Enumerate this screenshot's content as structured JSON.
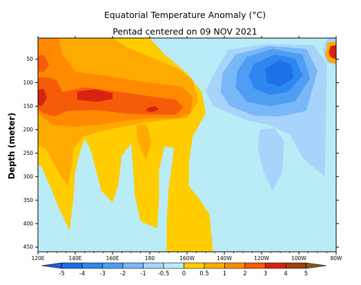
{
  "chart_data": {
    "type": "heatmap",
    "title": "Equatorial Temperature Anomaly (°C)",
    "subtitle": "Pentad centered on 09 NOV 2021",
    "xlabel": "",
    "ylabel": "Depth (meter)",
    "x_tick_labels": [
      "120E",
      "140E",
      "160E",
      "180",
      "160W",
      "140W",
      "120W",
      "100W",
      "80W"
    ],
    "x_tick_lon_east": [
      120,
      140,
      160,
      180,
      200,
      220,
      240,
      260,
      280
    ],
    "xlim_lon_east": [
      120,
      280
    ],
    "y_ticks": [
      50,
      100,
      150,
      200,
      250,
      300,
      350,
      400,
      450
    ],
    "ylim": [
      5,
      460
    ],
    "y_inverted": true,
    "colorbar": {
      "tick_labels": [
        "-5",
        "-4",
        "-3",
        "-2",
        "-1",
        "-0.5",
        "0",
        "0.5",
        "1",
        "2",
        "3",
        "4",
        "5"
      ],
      "bins": [
        {
          "lo": -99,
          "hi": -5,
          "color": "#1a5ed8"
        },
        {
          "lo": -5,
          "hi": -4,
          "color": "#1e70e6"
        },
        {
          "lo": -4,
          "hi": -3,
          "color": "#2e86f0"
        },
        {
          "lo": -3,
          "hi": -2,
          "color": "#509ef4"
        },
        {
          "lo": -2,
          "hi": -1,
          "color": "#78b7f8"
        },
        {
          "lo": -1,
          "hi": -0.5,
          "color": "#a8d4fb"
        },
        {
          "lo": -0.5,
          "hi": 0,
          "color": "#b9ecf6"
        },
        {
          "lo": 0,
          "hi": 0.5,
          "color": "#ffcd00"
        },
        {
          "lo": 0.5,
          "hi": 1,
          "color": "#ffaa00"
        },
        {
          "lo": 1,
          "hi": 2,
          "color": "#ff8a00"
        },
        {
          "lo": 2,
          "hi": 3,
          "color": "#f65b0a"
        },
        {
          "lo": 3,
          "hi": 4,
          "color": "#d8230e"
        },
        {
          "lo": 4,
          "hi": 5,
          "color": "#99400e"
        },
        {
          "lo": 5,
          "hi": 99,
          "color": "#7e5a1a"
        }
      ]
    },
    "regions": [
      {
        "level": -0.5,
        "pts": [
          [
            205,
            5
          ],
          [
            280,
            5
          ],
          [
            280,
            460
          ],
          [
            205,
            460
          ]
        ]
      },
      {
        "level": -1,
        "pts": [
          [
            222,
            30
          ],
          [
            242,
            18
          ],
          [
            268,
            20
          ],
          [
            275,
            60
          ],
          [
            274,
            300
          ],
          [
            262,
            260
          ],
          [
            255,
            210
          ],
          [
            244,
            190
          ],
          [
            232,
            180
          ],
          [
            214,
            150
          ],
          [
            210,
            118
          ],
          [
            214,
            85
          ]
        ]
      },
      {
        "level": -1,
        "pts": [
          [
            239,
            200
          ],
          [
            247,
            196
          ],
          [
            252,
            225
          ],
          [
            251,
            290
          ],
          [
            246,
            330
          ],
          [
            241,
            290
          ],
          [
            238,
            240
          ]
        ]
      },
      {
        "level": -2,
        "pts": [
          [
            226,
            40
          ],
          [
            244,
            22
          ],
          [
            264,
            28
          ],
          [
            270,
            75
          ],
          [
            264,
            160
          ],
          [
            250,
            172
          ],
          [
            236,
            170
          ],
          [
            223,
            150
          ],
          [
            218,
            120
          ],
          [
            219,
            80
          ]
        ]
      },
      {
        "level": -3,
        "pts": [
          [
            232,
            45
          ],
          [
            246,
            28
          ],
          [
            262,
            40
          ],
          [
            266,
            90
          ],
          [
            258,
            140
          ],
          [
            244,
            150
          ],
          [
            232,
            140
          ],
          [
            226,
            110
          ],
          [
            227,
            75
          ]
        ]
      },
      {
        "level": -4,
        "pts": [
          [
            236,
            60
          ],
          [
            247,
            40
          ],
          [
            258,
            48
          ],
          [
            262,
            85
          ],
          [
            254,
            120
          ],
          [
            244,
            126
          ],
          [
            236,
            112
          ],
          [
            233,
            85
          ]
        ]
      },
      {
        "level": -5,
        "pts": [
          [
            242,
            70
          ],
          [
            250,
            52
          ],
          [
            256,
            62
          ],
          [
            257,
            90
          ],
          [
            250,
            108
          ],
          [
            243,
            100
          ]
        ]
      },
      {
        "level": 0.25,
        "pts": [
          [
            120,
            5
          ],
          [
            180,
            5
          ],
          [
            188,
            40
          ],
          [
            200,
            80
          ],
          [
            208,
            120
          ],
          [
            210,
            165
          ],
          [
            203,
            215
          ],
          [
            201,
            270
          ],
          [
            201,
            320
          ],
          [
            207,
            350
          ],
          [
            212,
            380
          ],
          [
            213,
            420
          ],
          [
            214,
            460
          ],
          [
            189,
            460
          ],
          [
            189,
            400
          ],
          [
            190,
            330
          ],
          [
            192,
            270
          ],
          [
            193,
            240
          ],
          [
            188,
            235
          ],
          [
            185,
            285
          ],
          [
            185,
            345
          ],
          [
            184,
            410
          ],
          [
            175,
            395
          ],
          [
            172,
            340
          ],
          [
            170,
            230
          ],
          [
            165,
            255
          ],
          [
            163,
            320
          ],
          [
            160,
            355
          ],
          [
            154,
            330
          ],
          [
            150,
            270
          ],
          [
            148,
            240
          ],
          [
            145,
            220
          ],
          [
            142,
            255
          ],
          [
            140,
            290
          ],
          [
            139,
            345
          ],
          [
            137,
            415
          ],
          [
            131,
            365
          ],
          [
            127,
            325
          ],
          [
            122,
            280
          ],
          [
            120,
            275
          ]
        ]
      },
      {
        "level": 0.75,
        "pts": [
          [
            120,
            5
          ],
          [
            160,
            5
          ],
          [
            168,
            25
          ],
          [
            182,
            48
          ],
          [
            195,
            70
          ],
          [
            203,
            95
          ],
          [
            206,
            140
          ],
          [
            200,
            175
          ],
          [
            188,
            180
          ],
          [
            176,
            186
          ],
          [
            164,
            195
          ],
          [
            152,
            205
          ],
          [
            144,
            215
          ],
          [
            139,
            240
          ],
          [
            138,
            280
          ],
          [
            136,
            320
          ],
          [
            131,
            290
          ],
          [
            127,
            260
          ],
          [
            124,
            240
          ],
          [
            121,
            235
          ],
          [
            120,
            230
          ]
        ]
      },
      {
        "level": 0.75,
        "pts": [
          [
            173,
            190
          ],
          [
            178,
            188
          ],
          [
            181,
            225
          ],
          [
            178,
            265
          ],
          [
            175,
            240
          ],
          [
            173,
            215
          ]
        ]
      },
      {
        "level": 1.5,
        "pts": [
          [
            120,
            5
          ],
          [
            131,
            5
          ],
          [
            133,
            38
          ],
          [
            140,
            76
          ],
          [
            157,
            86
          ],
          [
            176,
            98
          ],
          [
            197,
            108
          ],
          [
            203,
            130
          ],
          [
            202,
            165
          ],
          [
            195,
            175
          ],
          [
            182,
            176
          ],
          [
            168,
            180
          ],
          [
            152,
            190
          ],
          [
            139,
            194
          ],
          [
            128,
            190
          ],
          [
            122,
            172
          ],
          [
            120,
            165
          ]
        ]
      },
      {
        "level": 2.5,
        "pts": [
          [
            120,
            90
          ],
          [
            125,
            88
          ],
          [
            130,
            95
          ],
          [
            133,
            120
          ],
          [
            145,
            110
          ],
          [
            168,
            122
          ],
          [
            182,
            130
          ],
          [
            194,
            136
          ],
          [
            198,
            152
          ],
          [
            194,
            168
          ],
          [
            182,
            168
          ],
          [
            168,
            166
          ],
          [
            150,
            158
          ],
          [
            136,
            160
          ],
          [
            129,
            172
          ],
          [
            123,
            165
          ],
          [
            120,
            155
          ]
        ]
      },
      {
        "level": 2.5,
        "pts": [
          [
            120,
            42
          ],
          [
            123,
            40
          ],
          [
            126,
            62
          ],
          [
            123,
            78
          ],
          [
            120,
            75
          ]
        ]
      },
      {
        "level": 3.5,
        "pts": [
          [
            141,
            119
          ],
          [
            151,
            114
          ],
          [
            160,
            122
          ],
          [
            160,
            135
          ],
          [
            151,
            141
          ],
          [
            141,
            136
          ]
        ]
      },
      {
        "level": 3.5,
        "pts": [
          [
            120,
            115
          ],
          [
            123,
            113
          ],
          [
            125,
            132
          ],
          [
            122,
            150
          ],
          [
            120,
            148
          ]
        ]
      },
      {
        "level": 3.5,
        "pts": [
          [
            179,
            153
          ],
          [
            183,
            150
          ],
          [
            185,
            157
          ],
          [
            181,
            163
          ],
          [
            178,
            160
          ]
        ]
      },
      {
        "level": -0.75,
        "pts": [
          [
            276,
            5
          ],
          [
            280,
            5
          ],
          [
            280,
            62
          ],
          [
            275,
            58
          ],
          [
            273,
            34
          ],
          [
            274,
            14
          ]
        ]
      },
      {
        "level": 0.75,
        "pts": [
          [
            275,
            15
          ],
          [
            280,
            13
          ],
          [
            280,
            60
          ],
          [
            276,
            56
          ],
          [
            274,
            40
          ],
          [
            275,
            25
          ]
        ]
      },
      {
        "level": 3.5,
        "pts": [
          [
            277,
            22
          ],
          [
            280,
            20
          ],
          [
            280,
            50
          ],
          [
            277,
            46
          ],
          [
            276,
            34
          ]
        ]
      }
    ]
  }
}
